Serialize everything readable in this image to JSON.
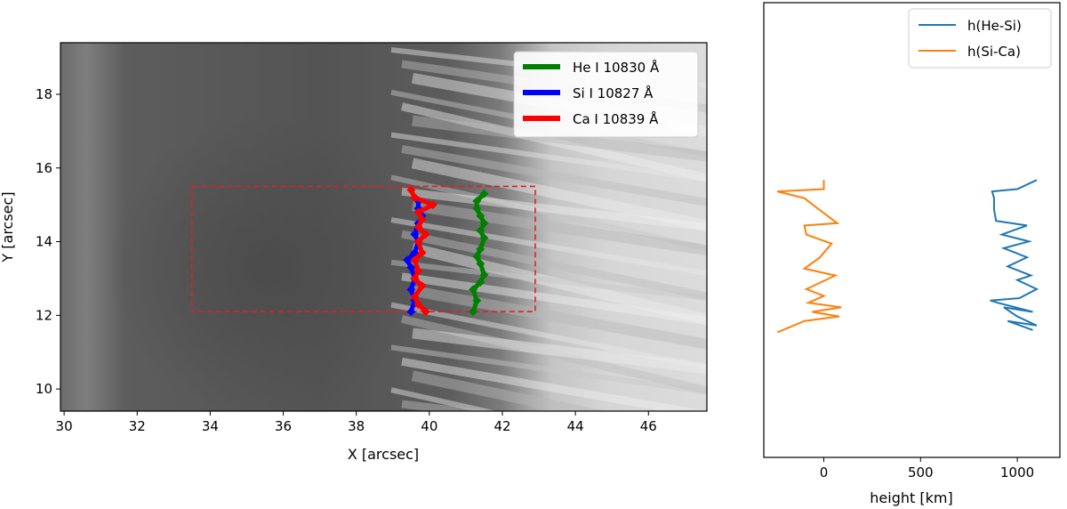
{
  "chart_data": [
    {
      "type": "line",
      "panel": "left",
      "background": "grayscale intensity image (dark sunspot umbra on the left, bright penumbral filaments on the right)",
      "xlabel": "X [arcsec]",
      "ylabel": "Y [arcsec]",
      "xlim": [
        29.9,
        47.6
      ],
      "ylim": [
        9.4,
        19.4
      ],
      "xticks": [
        30,
        32,
        34,
        36,
        38,
        40,
        42,
        44,
        46
      ],
      "yticks": [
        10,
        12,
        14,
        16,
        18
      ],
      "legend_position": "top-right",
      "box": {
        "x0": 33.5,
        "x1": 42.9,
        "y0": 12.1,
        "y1": 15.5,
        "color": "#e02020",
        "style": "dashed"
      },
      "series": [
        {
          "name": "He I 10830 Å",
          "color": "#008000",
          "points": [
            [
              41.2,
              12.1
            ],
            [
              41.3,
              12.4
            ],
            [
              41.2,
              12.7
            ],
            [
              41.4,
              12.9
            ],
            [
              41.5,
              13.1
            ],
            [
              41.4,
              13.4
            ],
            [
              41.3,
              13.6
            ],
            [
              41.4,
              13.8
            ],
            [
              41.5,
              14.1
            ],
            [
              41.4,
              14.3
            ],
            [
              41.5,
              14.5
            ],
            [
              41.4,
              14.7
            ],
            [
              41.3,
              14.9
            ],
            [
              41.3,
              15.1
            ],
            [
              41.5,
              15.3
            ]
          ]
        },
        {
          "name": "Si I 10827 Å",
          "color": "#0000ff",
          "points": [
            [
              39.5,
              12.1
            ],
            [
              39.6,
              12.4
            ],
            [
              39.5,
              12.7
            ],
            [
              39.6,
              13.0
            ],
            [
              39.5,
              13.3
            ],
            [
              39.4,
              13.5
            ],
            [
              39.6,
              13.7
            ],
            [
              39.7,
              14.0
            ],
            [
              39.6,
              14.2
            ],
            [
              39.7,
              14.5
            ],
            [
              39.8,
              14.7
            ],
            [
              39.7,
              14.9
            ],
            [
              39.7,
              15.1
            ]
          ]
        },
        {
          "name": "Ca I 10839 Å",
          "color": "#ff0000",
          "points": [
            [
              39.9,
              12.1
            ],
            [
              39.7,
              12.3
            ],
            [
              39.6,
              12.5
            ],
            [
              39.8,
              12.8
            ],
            [
              39.6,
              13.0
            ],
            [
              39.7,
              13.2
            ],
            [
              39.6,
              13.5
            ],
            [
              39.8,
              13.7
            ],
            [
              39.7,
              14.0
            ],
            [
              39.9,
              14.2
            ],
            [
              39.7,
              14.4
            ],
            [
              39.8,
              14.6
            ],
            [
              39.7,
              14.8
            ],
            [
              40.1,
              15.0
            ],
            [
              39.6,
              15.2
            ],
            [
              39.5,
              15.4
            ]
          ]
        }
      ]
    },
    {
      "type": "line",
      "panel": "right",
      "xlabel": "height [km]",
      "ylabel": "",
      "xlim": [
        -310,
        1220
      ],
      "ylim": [
        9.4,
        19.4
      ],
      "xticks": [
        0,
        500,
        1000
      ],
      "yticks": [],
      "legend_position": "top-right",
      "series": [
        {
          "name": "h(He-Si)",
          "color": "#1f77b4",
          "points": [
            [
              1080,
              12.2
            ],
            [
              950,
              12.4
            ],
            [
              1100,
              12.3
            ],
            [
              1000,
              12.5
            ],
            [
              930,
              12.7
            ],
            [
              1080,
              12.6
            ],
            [
              900,
              12.8
            ],
            [
              860,
              12.85
            ],
            [
              1010,
              12.9
            ],
            [
              1100,
              13.1
            ],
            [
              1000,
              13.3
            ],
            [
              1070,
              13.4
            ],
            [
              950,
              13.6
            ],
            [
              1050,
              13.8
            ],
            [
              930,
              14.0
            ],
            [
              1060,
              14.15
            ],
            [
              920,
              14.3
            ],
            [
              1050,
              14.5
            ],
            [
              890,
              14.6
            ],
            [
              880,
              14.85
            ],
            [
              880,
              15.1
            ],
            [
              870,
              15.25
            ],
            [
              1000,
              15.3
            ],
            [
              1100,
              15.5
            ]
          ]
        },
        {
          "name": "h(Si-Ca)",
          "color": "#ff7f0e",
          "points": [
            [
              -240,
              12.15
            ],
            [
              -100,
              12.4
            ],
            [
              80,
              12.5
            ],
            [
              -60,
              12.6
            ],
            [
              90,
              12.7
            ],
            [
              -80,
              12.8
            ],
            [
              0,
              12.95
            ],
            [
              -90,
              13.1
            ],
            [
              60,
              13.4
            ],
            [
              -100,
              13.55
            ],
            [
              -20,
              13.8
            ],
            [
              40,
              14.1
            ],
            [
              -90,
              14.3
            ],
            [
              -100,
              14.5
            ],
            [
              70,
              14.55
            ],
            [
              -40,
              14.9
            ],
            [
              -100,
              15.1
            ],
            [
              -240,
              15.25
            ],
            [
              0,
              15.3
            ],
            [
              0,
              15.5
            ]
          ]
        }
      ]
    }
  ]
}
